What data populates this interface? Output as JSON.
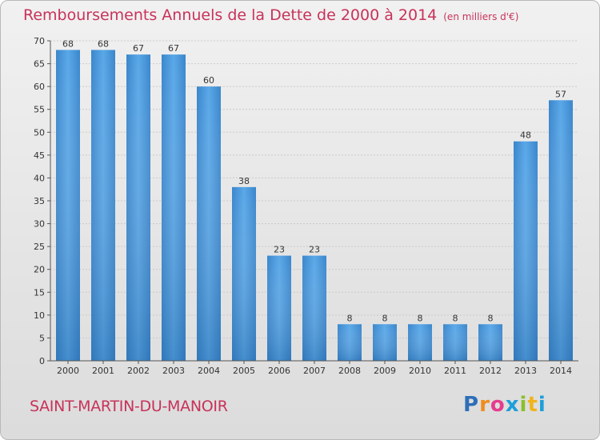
{
  "chart_data": {
    "type": "bar",
    "title": "Remboursements Annuels de la Dette de 2000 à 2014",
    "subtitle": "(en milliers d'€)",
    "categories": [
      "2000",
      "2001",
      "2002",
      "2003",
      "2004",
      "2005",
      "2006",
      "2007",
      "2008",
      "2009",
      "2010",
      "2011",
      "2012",
      "2013",
      "2014"
    ],
    "values": [
      68,
      68,
      67,
      67,
      60,
      38,
      23,
      23,
      8,
      8,
      8,
      8,
      8,
      48,
      57
    ],
    "ylim": [
      0,
      70
    ],
    "yticks": [
      0,
      5,
      10,
      15,
      20,
      25,
      30,
      35,
      40,
      45,
      50,
      55,
      60,
      65,
      70
    ],
    "grid": true,
    "bar_color": "#4a97d8"
  },
  "footer": {
    "commune": "SAINT-MARTIN-DU-MANOIR",
    "brand": "Proxiti"
  },
  "colors": {
    "accent": "#c8325a"
  }
}
